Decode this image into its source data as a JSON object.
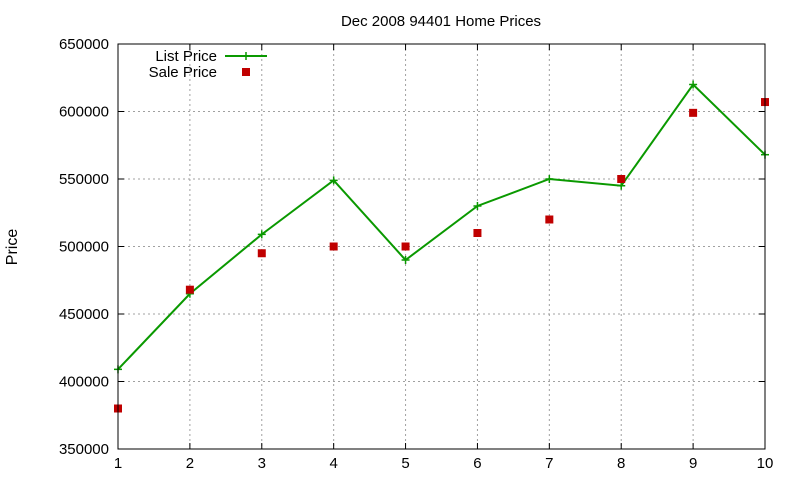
{
  "chart_data": {
    "type": "line",
    "title": "Dec 2008 94401 Home Prices",
    "xlabel": "",
    "ylabel": "Price",
    "x": [
      1,
      2,
      3,
      4,
      5,
      6,
      7,
      8,
      9,
      10
    ],
    "xlim": [
      1,
      10
    ],
    "ylim": [
      350000,
      650000
    ],
    "xticks": [
      "1",
      "2",
      "3",
      "4",
      "5",
      "6",
      "7",
      "8",
      "9",
      "10"
    ],
    "yticks": [
      "350000",
      "400000",
      "450000",
      "500000",
      "550000",
      "600000",
      "650000"
    ],
    "grid": true,
    "legend_position": "top-left",
    "series": [
      {
        "name": "List Price",
        "style": "linespoints",
        "marker": "plus",
        "color": "#0a9900",
        "values": [
          409000,
          465000,
          509000,
          549000,
          490000,
          530000,
          550000,
          545000,
          620000,
          568000
        ]
      },
      {
        "name": "Sale Price",
        "style": "points",
        "marker": "square",
        "color": "#c00000",
        "values": [
          380000,
          468000,
          495000,
          500000,
          500000,
          510000,
          520000,
          550000,
          599000,
          607000
        ]
      }
    ]
  }
}
